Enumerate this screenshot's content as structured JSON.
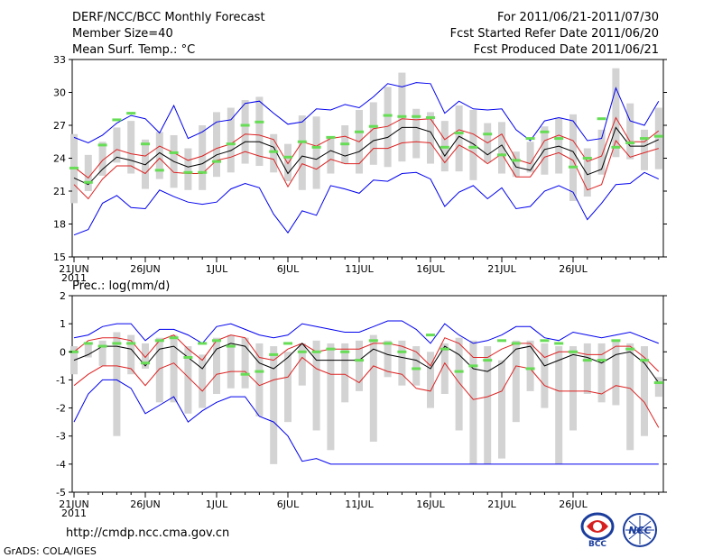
{
  "header": {
    "title": "DERF/NCC/BCC Monthly Forecast",
    "member_size": "Member Size=40",
    "variable": "Mean Surf. Temp.: °C",
    "period": "For 2011/06/21-2011/07/30",
    "started_refer": "Fcst Started Refer Date 2011/06/20",
    "produced": "Fcst Produced Date 2011/06/21"
  },
  "footer": {
    "url": "http://cmdp.ncc.cma.gov.cn",
    "credit": "GrADS: COLA/IGES",
    "logo_bcc": "BCC",
    "logo_ncc": "NCC"
  },
  "colors": {
    "bar": "#d3d3d3",
    "marker": "#66dd55",
    "envelope": "#0000ee",
    "spread": "#dd2222",
    "mean": "#000000"
  },
  "chart_data": [
    {
      "type": "box",
      "ylabel": "Mean Surf. Temp.: °C",
      "ylim": [
        15,
        33
      ],
      "yticks": [
        15,
        18,
        21,
        24,
        27,
        30,
        33
      ],
      "xtick_labels": [
        "21JUN",
        "26JUN",
        "1JUL",
        "6JUL",
        "11JUL",
        "16JUL",
        "21JUL",
        "26JUL"
      ],
      "xtick_days": [
        0,
        5,
        10,
        15,
        20,
        25,
        30,
        35
      ],
      "year_label": "2011",
      "ensemble_max": [
        25.9,
        25.4,
        26.1,
        27.2,
        27.9,
        27.6,
        26.3,
        28.8,
        25.8,
        26.4,
        27.3,
        27.5,
        29.0,
        29.2,
        28.1,
        27.1,
        27.3,
        28.5,
        28.4,
        28.9,
        28.6,
        29.6,
        30.8,
        30.5,
        30.9,
        30.8,
        28.1,
        29.2,
        28.5,
        28.4,
        28.5,
        26.6,
        25.6,
        27.4,
        27.7,
        27.4,
        25.6,
        25.8,
        30.4,
        27.4,
        27.0,
        29.2
      ],
      "ensemble_min": [
        17.0,
        17.5,
        19.9,
        20.6,
        19.5,
        19.4,
        21.1,
        20.5,
        20.0,
        19.8,
        20.0,
        21.2,
        21.7,
        21.3,
        18.9,
        17.2,
        19.2,
        18.8,
        21.5,
        21.2,
        20.8,
        22.0,
        21.9,
        22.6,
        22.7,
        22.1,
        19.6,
        20.9,
        21.5,
        20.3,
        21.3,
        19.4,
        19.6,
        21.0,
        21.5,
        20.9,
        18.4,
        19.9,
        21.6,
        21.7,
        22.7,
        22.1
      ],
      "upper_spread": [
        23.2,
        22.2,
        23.8,
        24.8,
        24.4,
        24.2,
        25.1,
        24.5,
        23.8,
        24.2,
        24.9,
        25.3,
        26.2,
        26.1,
        25.7,
        23.5,
        25.5,
        25.1,
        25.8,
        26.0,
        25.5,
        26.7,
        26.9,
        27.6,
        27.5,
        27.6,
        25.7,
        26.6,
        26.2,
        25.4,
        26.2,
        23.9,
        23.5,
        25.6,
        26.1,
        25.6,
        23.7,
        24.2,
        27.7,
        25.5,
        25.5,
        26.5
      ],
      "mean": [
        22.2,
        21.6,
        23.0,
        24.1,
        23.8,
        23.4,
        24.5,
        23.7,
        23.2,
        23.5,
        24.3,
        24.7,
        25.5,
        25.5,
        25.0,
        22.6,
        24.2,
        23.9,
        24.7,
        24.2,
        24.6,
        25.6,
        25.9,
        26.8,
        26.8,
        26.4,
        24.2,
        26.0,
        25.3,
        24.3,
        25.2,
        23.2,
        22.9,
        24.8,
        25.1,
        24.6,
        22.5,
        23.0,
        26.8,
        25.1,
        25.1,
        25.7
      ],
      "lower_spread": [
        21.6,
        20.3,
        22.1,
        23.3,
        23.3,
        22.6,
        24.0,
        22.7,
        22.6,
        22.6,
        23.8,
        24.1,
        24.6,
        24.2,
        23.9,
        21.4,
        23.5,
        23.0,
        23.9,
        23.5,
        23.5,
        24.9,
        24.9,
        25.4,
        25.5,
        25.4,
        23.6,
        25.2,
        24.5,
        23.5,
        24.4,
        22.3,
        22.3,
        24.1,
        24.5,
        23.8,
        21.1,
        21.6,
        25.6,
        24.1,
        24.5,
        24.9
      ],
      "bar_top": [
        26.2,
        24.3,
        25.5,
        26.8,
        27.4,
        25.7,
        26.4,
        26.1,
        24.9,
        27.0,
        28.2,
        28.6,
        29.3,
        29.6,
        26.2,
        25.3,
        27.9,
        27.8,
        25.8,
        27.0,
        28.4,
        29.1,
        30.5,
        31.8,
        28.5,
        28.2,
        27.4,
        28.8,
        28.4,
        27.2,
        27.3,
        24.6,
        25.5,
        26.9,
        27.7,
        28.0,
        24.9,
        26.6,
        32.2,
        29.0,
        26.6,
        28.6
      ],
      "bar_bottom": [
        19.9,
        21.0,
        22.4,
        23.6,
        22.6,
        21.2,
        22.1,
        21.3,
        21.1,
        21.1,
        22.3,
        22.7,
        23.5,
        23.3,
        22.7,
        21.9,
        21.1,
        21.2,
        22.6,
        23.5,
        22.6,
        23.4,
        23.2,
        23.7,
        24.0,
        23.5,
        22.8,
        22.8,
        22.0,
        23.6,
        22.6,
        22.3,
        22.7,
        22.5,
        22.6,
        20.1,
        20.5,
        22.5,
        24.1,
        23.9,
        22.9,
        23.0
      ],
      "marker": [
        23.1,
        21.8,
        25.2,
        27.5,
        28.1,
        25.3,
        22.9,
        24.5,
        22.7,
        22.7,
        23.7,
        25.3,
        27.0,
        27.3,
        24.6,
        24.1,
        25.5,
        25.0,
        25.9,
        25.3,
        26.4,
        26.9,
        27.9,
        27.8,
        27.8,
        27.7,
        25.0,
        26.3,
        25.0,
        26.2,
        24.3,
        23.8,
        25.8,
        26.4,
        25.8,
        23.2,
        24.0,
        27.6,
        25.0,
        25.4,
        25.8,
        26.0
      ]
    },
    {
      "type": "box",
      "ylabel": "Prec.: log(mm/d)",
      "ylim": [
        -5,
        2
      ],
      "yticks": [
        -5,
        -4,
        -3,
        -2,
        -1,
        0,
        1,
        2
      ],
      "xtick_labels": [
        "21JUN",
        "26JUN",
        "1JUL",
        "6JUL",
        "11JUL",
        "16JUL",
        "21JUL",
        "26JUL"
      ],
      "xtick_days": [
        0,
        5,
        10,
        15,
        20,
        25,
        30,
        35
      ],
      "year_label": "2011",
      "ensemble_max": [
        0.5,
        0.6,
        0.9,
        1.0,
        1.0,
        0.4,
        0.8,
        0.8,
        0.6,
        0.3,
        0.9,
        1.0,
        0.8,
        0.6,
        0.5,
        0.6,
        1.0,
        0.9,
        0.8,
        0.7,
        0.7,
        0.9,
        1.1,
        1.1,
        0.8,
        0.3,
        1.0,
        0.6,
        0.3,
        0.4,
        0.6,
        0.9,
        0.9,
        0.5,
        0.4,
        0.7,
        0.6,
        0.5,
        0.6,
        0.7,
        0.5,
        0.3
      ],
      "ensemble_min": [
        -2.5,
        -1.5,
        -1.0,
        -1.0,
        -1.3,
        -2.2,
        -1.9,
        -1.6,
        -2.5,
        -2.1,
        -1.8,
        -1.6,
        -1.6,
        -2.3,
        -2.5,
        -3.0,
        -3.9,
        -3.8,
        -4.0,
        -4.0,
        -4.0,
        -4.0,
        -4.0,
        -4.0,
        -4.0,
        -4.0,
        -4.0,
        -4.0,
        -4.0,
        -4.0,
        -4.0,
        -4.0,
        -4.0,
        -4.0,
        -4.0,
        -4.0,
        -4.0,
        -4.0,
        -4.0,
        -4.0,
        -4.0,
        -4.0
      ],
      "upper_spread": [
        0.0,
        0.4,
        0.5,
        0.5,
        0.4,
        -0.2,
        0.4,
        0.6,
        0.1,
        -0.3,
        0.4,
        0.6,
        0.5,
        -0.2,
        -0.3,
        0.1,
        0.3,
        0.0,
        0.1,
        0.1,
        0.1,
        0.3,
        0.3,
        0.2,
        0.0,
        -0.5,
        0.5,
        0.3,
        -0.2,
        -0.2,
        0.1,
        0.3,
        0.3,
        -0.2,
        0.0,
        0.0,
        -0.1,
        -0.1,
        0.2,
        0.2,
        -0.2,
        -0.7
      ],
      "mean": [
        -0.3,
        -0.1,
        0.2,
        0.2,
        0.1,
        -0.5,
        0.1,
        0.2,
        -0.2,
        -0.6,
        0.1,
        0.3,
        0.2,
        -0.4,
        -0.6,
        -0.2,
        0.3,
        -0.3,
        -0.3,
        -0.3,
        -0.3,
        0.1,
        -0.1,
        -0.2,
        -0.3,
        -0.6,
        0.2,
        -0.1,
        -0.6,
        -0.7,
        -0.4,
        0.1,
        0.2,
        -0.5,
        -0.3,
        -0.1,
        -0.2,
        -0.4,
        -0.1,
        0.0,
        -0.4,
        -1.1
      ],
      "lower_spread": [
        -1.2,
        -0.8,
        -0.5,
        -0.5,
        -0.6,
        -1.2,
        -0.6,
        -0.4,
        -0.9,
        -1.4,
        -0.8,
        -0.7,
        -0.7,
        -1.2,
        -1.0,
        -0.9,
        -0.2,
        -0.6,
        -0.8,
        -0.8,
        -1.1,
        -0.5,
        -0.7,
        -0.8,
        -1.3,
        -1.4,
        -0.4,
        -1.1,
        -1.7,
        -1.6,
        -1.4,
        -0.5,
        -0.6,
        -1.2,
        -1.4,
        -1.4,
        -1.4,
        -1.5,
        -1.2,
        -1.3,
        -1.8,
        -2.7
      ],
      "bar_top": [
        0.2,
        0.3,
        0.4,
        0.7,
        0.6,
        0.3,
        0.5,
        0.6,
        0.2,
        -0.1,
        0.5,
        0.6,
        0.5,
        0.3,
        0.2,
        0.0,
        0.3,
        0.4,
        0.3,
        0.3,
        0.4,
        0.6,
        0.4,
        0.4,
        0.2,
        0.0,
        0.3,
        0.5,
        0.4,
        0.2,
        -0.3,
        0.4,
        0.4,
        0.3,
        0.2,
        0.2,
        0.3,
        0.3,
        0.4,
        0.3,
        0.2,
        -0.9
      ],
      "bar_bottom": [
        -0.8,
        -0.2,
        -0.5,
        -3.0,
        -0.8,
        -0.6,
        -1.8,
        -1.8,
        -2.2,
        -2.0,
        -1.5,
        -1.3,
        -1.3,
        -2.3,
        -4.0,
        -2.5,
        -1.2,
        -2.8,
        -3.5,
        -1.8,
        -1.4,
        -3.2,
        -0.9,
        -1.2,
        -1.2,
        -2.0,
        -1.5,
        -2.8,
        -4.0,
        -4.0,
        -3.8,
        -2.5,
        -1.4,
        -2.0,
        -4.0,
        -2.8,
        -1.5,
        -1.8,
        -1.9,
        -3.5,
        -3.0,
        -1.6
      ],
      "marker": [
        0.0,
        0.3,
        0.2,
        0.3,
        0.3,
        -0.4,
        0.4,
        0.5,
        -0.2,
        0.3,
        0.4,
        0.2,
        -0.8,
        -0.7,
        -0.1,
        0.3,
        0.0,
        0.0,
        0.1,
        -0.0,
        -0.3,
        0.4,
        0.3,
        -0.0,
        -0.6,
        0.6,
        0.1,
        -0.7,
        -0.5,
        -0.3,
        0.4,
        0.3,
        -0.6,
        0.4,
        0.3,
        -0.0,
        -0.3,
        -0.3,
        0.4,
        0.1,
        -0.3,
        -1.1
      ]
    }
  ]
}
